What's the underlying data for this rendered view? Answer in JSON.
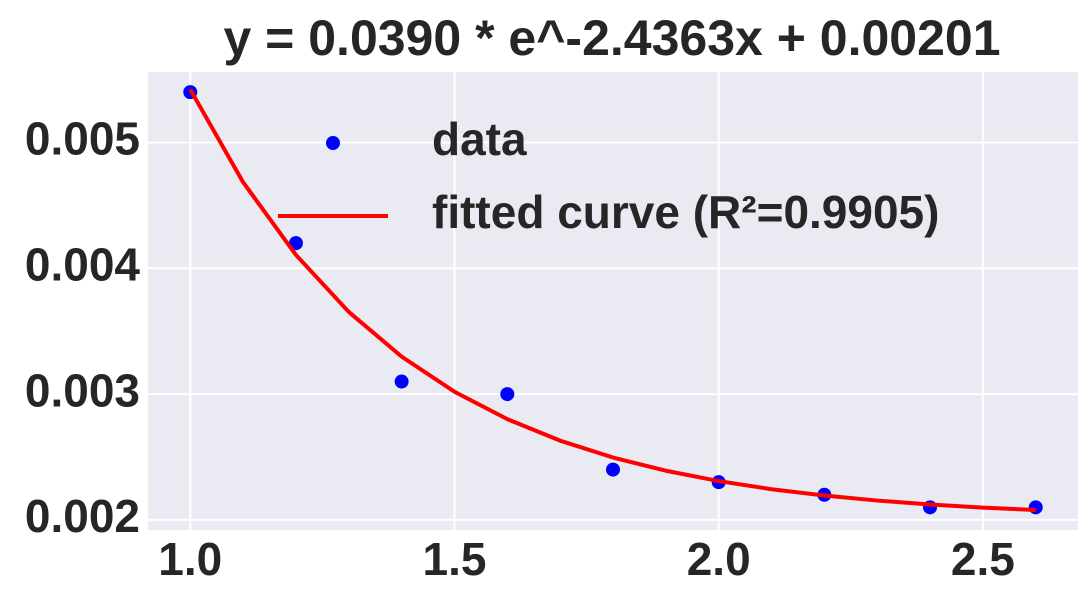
{
  "chart_data": {
    "type": "scatter",
    "title": "y = 0.0390 * e^-2.4363x + 0.00201",
    "xlim": [
      0.92,
      2.68
    ],
    "ylim": [
      0.00192,
      0.00556
    ],
    "xticks": [
      {
        "value": 1.0,
        "label": "1.0"
      },
      1.5,
      {
        "value": 2.0,
        "label": "2.0"
      },
      2.5
    ],
    "yticks": [
      0.002,
      0.003,
      0.004,
      0.005
    ],
    "grid": true,
    "legend": "upper right",
    "series": [
      {
        "name": "data",
        "type": "scatter",
        "color": "#0000ff",
        "x": [
          1.0,
          1.2,
          1.4,
          1.6,
          1.8,
          2.0,
          2.2,
          2.4,
          2.6
        ],
        "values": [
          0.0054,
          0.0042,
          0.0031,
          0.003,
          0.0024,
          0.0023,
          0.0022,
          0.0021,
          0.0021
        ]
      },
      {
        "name": "fitted curve (R²=0.9905)",
        "type": "line",
        "color": "#ff0000",
        "x": [
          1.0,
          1.1,
          1.2,
          1.3,
          1.4,
          1.5,
          1.6,
          1.7,
          1.8,
          1.9,
          2.0,
          2.1,
          2.2,
          2.3,
          2.4,
          2.5,
          2.6
        ],
        "values": [
          0.005421,
          0.004684,
          0.004106,
          0.003653,
          0.003298,
          0.003019,
          0.002801,
          0.00263,
          0.002496,
          0.002391,
          0.002309,
          0.002244,
          0.002194,
          0.002154,
          0.002123,
          0.002098,
          0.002079
        ]
      }
    ]
  }
}
